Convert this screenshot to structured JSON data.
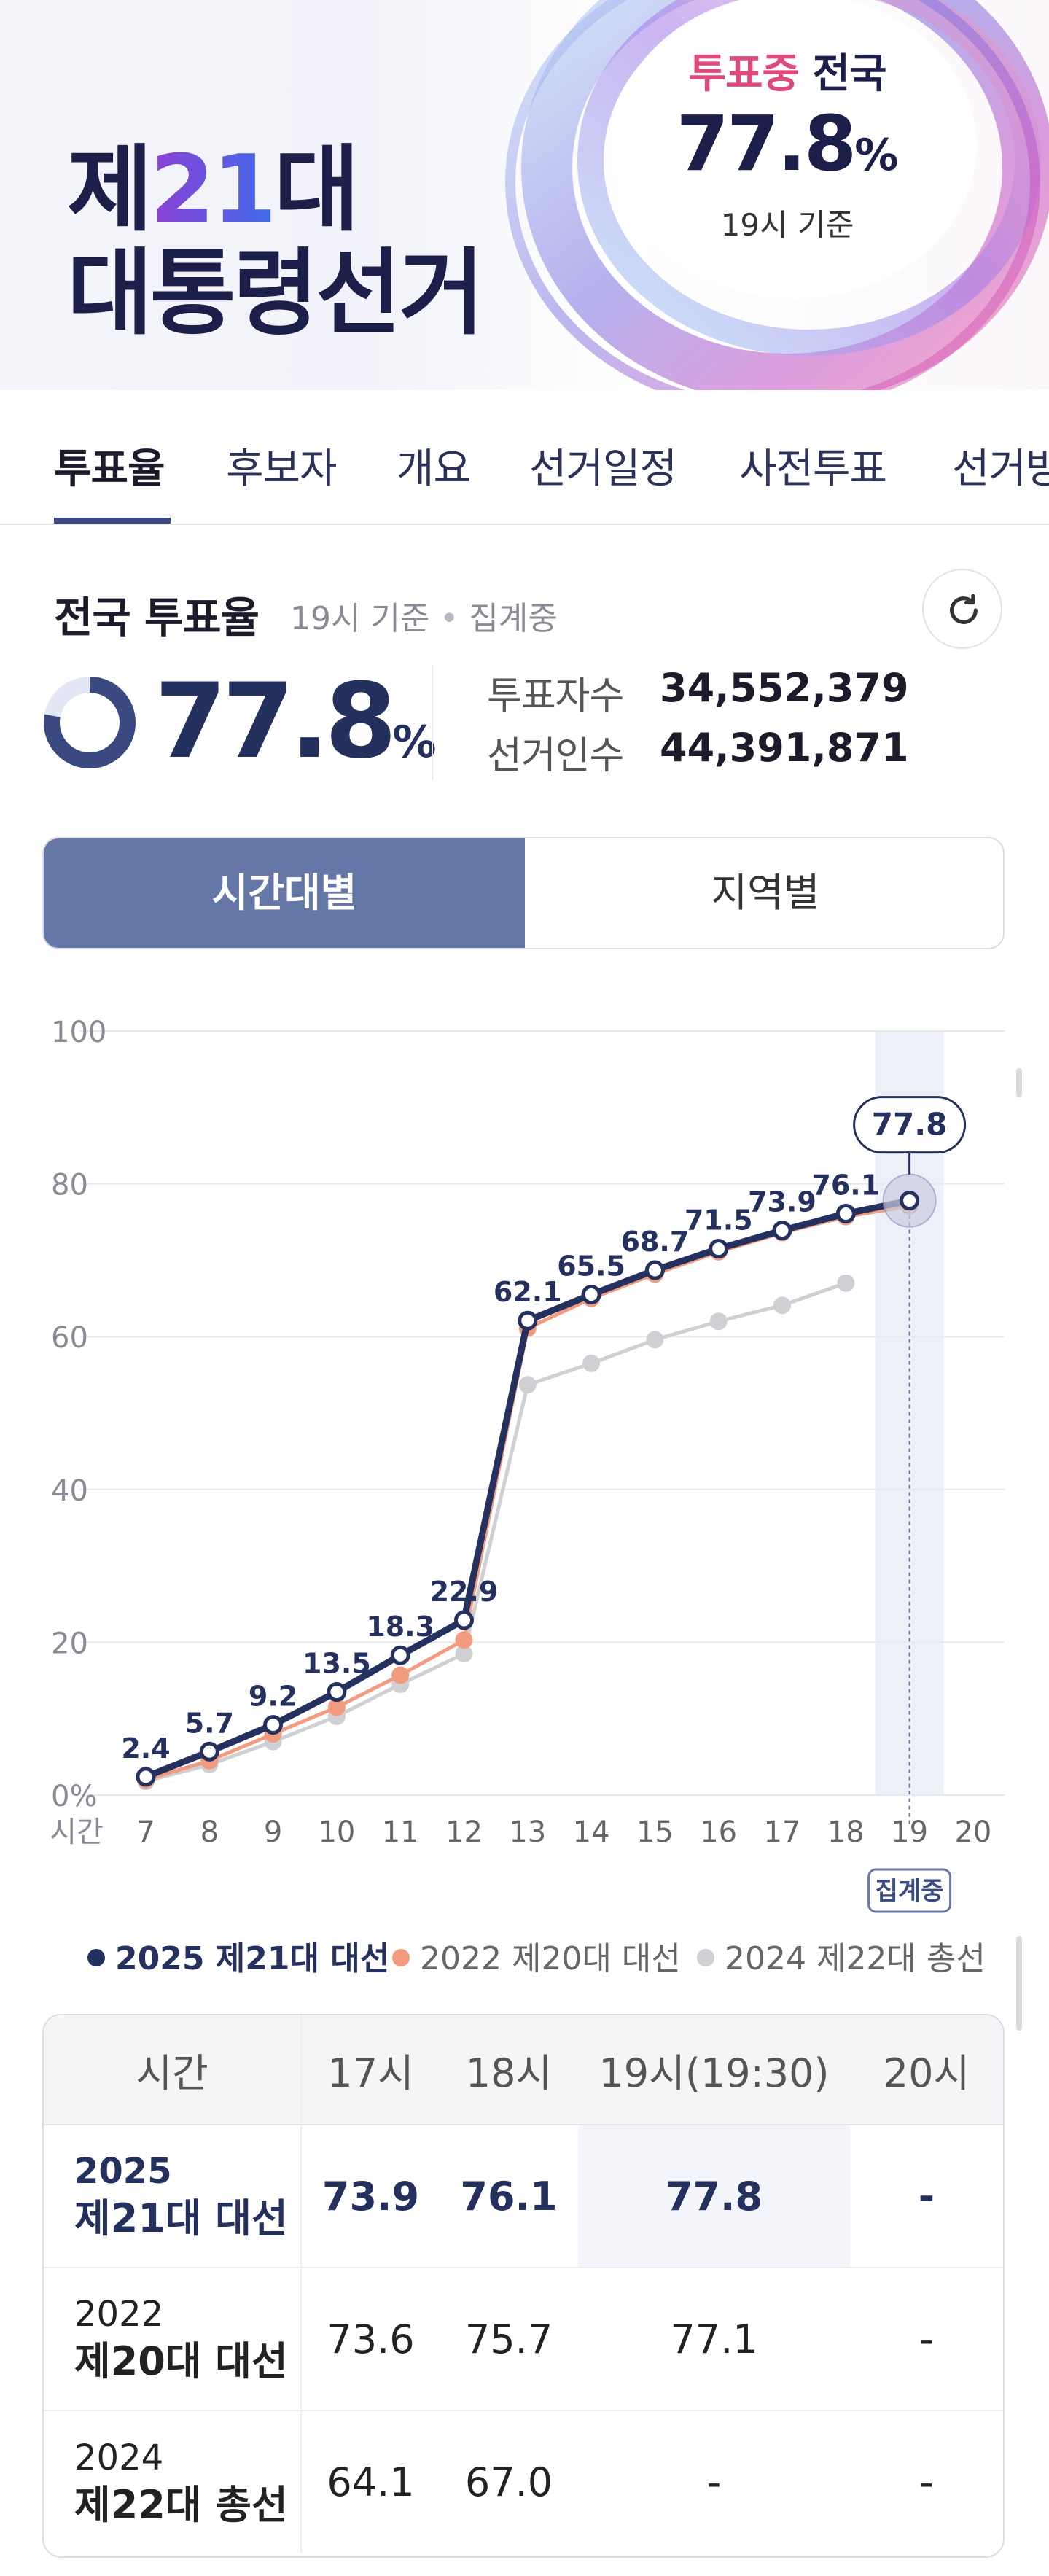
{
  "banner": {
    "title_line1_pre": "제",
    "title_line1_num": "21",
    "title_line1_post": "대",
    "title_line2": "대통령선거",
    "status_live": "투표중",
    "status_nation": "전국",
    "turnout_value": "77.8",
    "turnout_unit": "%",
    "turnout_basis": "19시 기준"
  },
  "tabs": [
    "투표율",
    "후보자",
    "개요",
    "선거일정",
    "사전투표",
    "선거방"
  ],
  "summary": {
    "title": "전국 투표율",
    "basis": "19시 기준",
    "status": "집계중",
    "rate": "77.8",
    "rate_unit": "%",
    "rate_fraction": 0.778,
    "voters_label": "투표자수",
    "voters_value": "34,552,379",
    "electorate_label": "선거인수",
    "electorate_value": "44,391,871"
  },
  "segment": {
    "active": "시간대별",
    "inactive": "지역별"
  },
  "colors": {
    "main": "#24305e",
    "accent_pink": "#e0497e",
    "series_2022": "#f39b7f",
    "series_2024": "#cfcfd4",
    "segment_active": "#6577a6"
  },
  "chart_data": {
    "type": "line",
    "x_axis_title": "시간",
    "x": [
      7,
      8,
      9,
      10,
      11,
      12,
      13,
      14,
      15,
      16,
      17,
      18,
      19,
      20
    ],
    "ylim": [
      0,
      100
    ],
    "yticks": [
      0,
      20,
      40,
      60,
      80,
      100
    ],
    "ytick_labels": [
      "0%",
      "20",
      "40",
      "60",
      "80",
      "100"
    ],
    "grid": true,
    "highlight_x": 19,
    "highlight_tag": "집계중",
    "legend_position": "bottom",
    "series": [
      {
        "name": "2025 제21대 대선",
        "x": [
          7,
          8,
          9,
          10,
          11,
          12,
          13,
          14,
          15,
          16,
          17,
          18,
          19
        ],
        "values": [
          2.4,
          5.7,
          9.2,
          13.5,
          18.3,
          22.9,
          62.1,
          65.5,
          68.7,
          71.5,
          73.9,
          76.1,
          77.8
        ],
        "labeled": true
      },
      {
        "name": "2022 제20대 대선",
        "x": [
          7,
          8,
          9,
          10,
          11,
          12,
          13,
          14,
          15,
          16,
          17,
          18,
          19
        ],
        "values": [
          2.0,
          4.5,
          8.0,
          11.5,
          15.7,
          20.3,
          61.1,
          65.0,
          68.2,
          71.1,
          73.6,
          75.7,
          77.1
        ]
      },
      {
        "name": "2024 제22대 총선",
        "x": [
          7,
          8,
          9,
          10,
          11,
          12,
          13,
          14,
          15,
          16,
          17,
          18
        ],
        "values": [
          1.8,
          4.0,
          7.0,
          10.3,
          14.5,
          18.5,
          53.7,
          56.5,
          59.6,
          62.0,
          64.1,
          67.0
        ]
      }
    ]
  },
  "table": {
    "headers": [
      "시간",
      "17시",
      "18시",
      "19시(19:30)",
      "20시"
    ],
    "rows": [
      {
        "year": "2025",
        "election": "제21대 대선",
        "values": [
          "73.9",
          "76.1",
          "77.8",
          "-"
        ]
      },
      {
        "year": "2022",
        "election": "제20대 대선",
        "values": [
          "73.6",
          "75.7",
          "77.1",
          "-"
        ]
      },
      {
        "year": "2024",
        "election": "제22대 총선",
        "values": [
          "64.1",
          "67.0",
          "-",
          "-"
        ]
      }
    ]
  }
}
